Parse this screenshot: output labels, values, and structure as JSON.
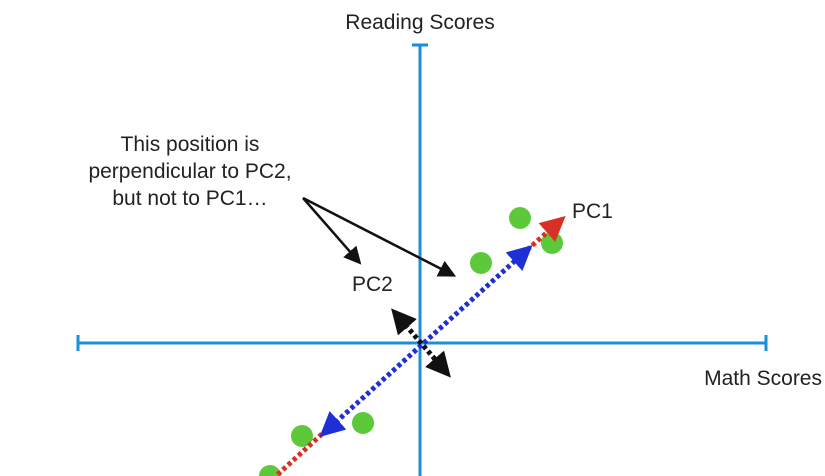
{
  "labels": {
    "y_axis": "Reading Scores",
    "x_axis": "Math Scores",
    "pc1": "PC1",
    "pc2": "PC2",
    "annotation_line1": "This position is",
    "annotation_line2": "perpendicular to PC2,",
    "annotation_line3": "but not to PC1…"
  },
  "colors": {
    "axis": "#1a8fd8",
    "point": "#5cc93a",
    "pc1_inner": "#1f2fd6",
    "pc1_outer": "#d93025",
    "pc2": "#111111",
    "annotation_arrow": "#111111",
    "text": "#222222"
  },
  "icons": {
    "points": "circle",
    "arrows": "arrowhead"
  }
}
